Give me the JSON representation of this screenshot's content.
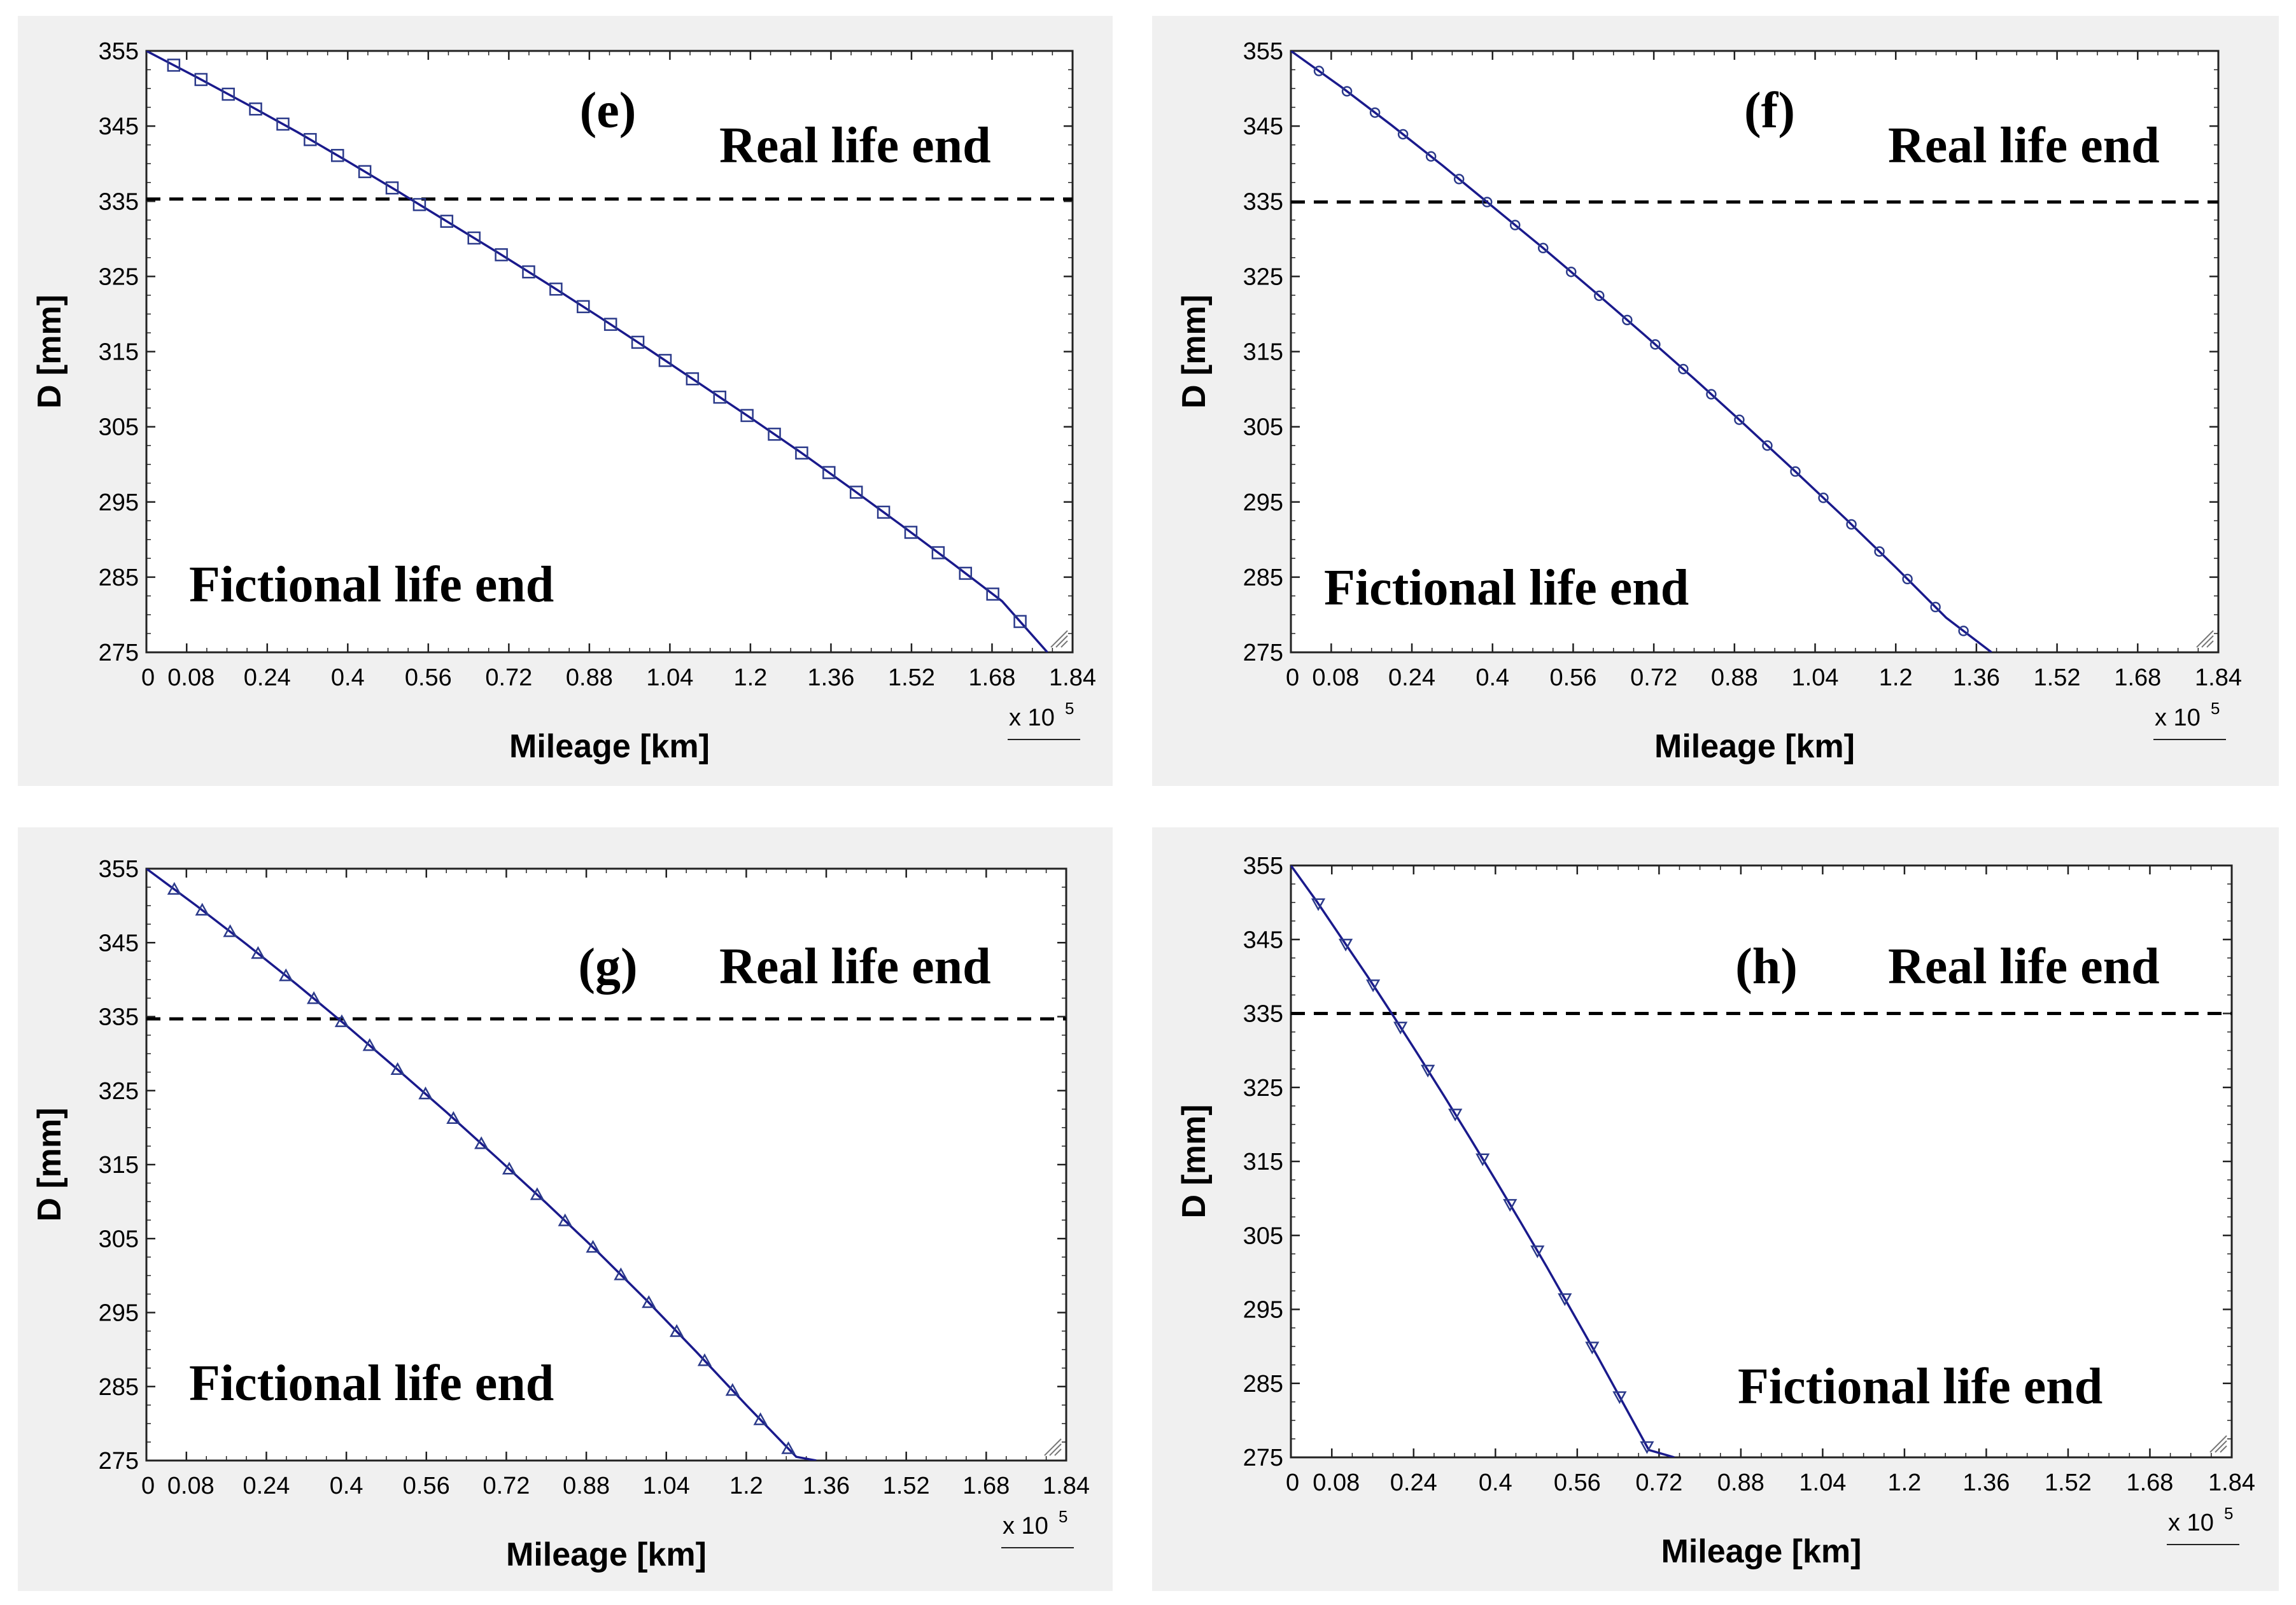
{
  "chart_data": [
    {
      "type": "line",
      "panel_label": "(e)",
      "marker": "square",
      "xlabel": "Mileage [km]",
      "ylabel": "D [mm]",
      "x_multiplier": "x 10",
      "x_multiplier_exp": "5",
      "xlim": [
        0,
        1.84
      ],
      "ylim": [
        275,
        355
      ],
      "x_ticks": [
        "0",
        "0.08",
        "0.24",
        "0.4",
        "0.56",
        "0.72",
        "0.88",
        "1.04",
        "1.2",
        "1.36",
        "1.52",
        "1.68",
        "1.84"
      ],
      "y_ticks": [
        "355",
        "345",
        "335",
        "325",
        "315",
        "305",
        "295",
        "285",
        "275"
      ],
      "threshold": 335.3,
      "threshold_label": "Real life end",
      "fictional_label": "Fictional life end",
      "series": [
        {
          "name": "D",
          "x": [
            0,
            0.1,
            0.2,
            0.3,
            0.4,
            0.5,
            0.6,
            0.7,
            0.8,
            0.9,
            1.0,
            1.1,
            1.2,
            1.3,
            1.4,
            1.5,
            1.6,
            1.7,
            1.79
          ],
          "y": [
            355,
            351.5,
            347.9,
            344.2,
            340.3,
            336.3,
            332.2,
            328.1,
            323.9,
            319.6,
            315.2,
            310.7,
            306.2,
            301.6,
            296.8,
            291.9,
            286.9,
            281.8,
            275
          ]
        }
      ]
    },
    {
      "type": "line",
      "panel_label": "(f)",
      "marker": "circle",
      "xlabel": "Mileage [km]",
      "ylabel": "D [mm]",
      "x_multiplier": "x 10",
      "x_multiplier_exp": "5",
      "xlim": [
        0,
        1.84
      ],
      "ylim": [
        275,
        355
      ],
      "x_ticks": [
        "0",
        "0.08",
        "0.24",
        "0.4",
        "0.56",
        "0.72",
        "0.88",
        "1.04",
        "1.2",
        "1.36",
        "1.52",
        "1.68",
        "1.84"
      ],
      "y_ticks": [
        "355",
        "345",
        "335",
        "325",
        "315",
        "305",
        "295",
        "285",
        "275"
      ],
      "threshold": 334.9,
      "threshold_label": "Real life end",
      "fictional_label": "Fictional life end",
      "series": [
        {
          "name": "D",
          "x": [
            0,
            0.1,
            0.2,
            0.3,
            0.4,
            0.5,
            0.6,
            0.7,
            0.8,
            0.9,
            1.0,
            1.1,
            1.2,
            1.3,
            1.39
          ],
          "y": [
            355,
            350.2,
            345.1,
            339.8,
            334.3,
            328.8,
            323.1,
            317.3,
            311.4,
            305.3,
            299.1,
            292.8,
            286.3,
            279.6,
            275
          ]
        }
      ]
    },
    {
      "type": "line",
      "panel_label": "(g)",
      "marker": "triangle-up",
      "xlabel": "Mileage [km]",
      "ylabel": "D [mm]",
      "x_multiplier": "x 10",
      "x_multiplier_exp": "5",
      "xlim": [
        0,
        1.84
      ],
      "ylim": [
        275,
        355
      ],
      "x_ticks": [
        "0",
        "0.08",
        "0.24",
        "0.4",
        "0.56",
        "0.72",
        "0.88",
        "1.04",
        "1.2",
        "1.36",
        "1.52",
        "1.68",
        "1.84"
      ],
      "y_ticks": [
        "355",
        "345",
        "335",
        "325",
        "315",
        "305",
        "295",
        "285",
        "275"
      ],
      "threshold": 334.7,
      "threshold_label": "Real life end",
      "fictional_label": "Fictional life end",
      "series": [
        {
          "name": "D",
          "x": [
            0,
            0.1,
            0.2,
            0.3,
            0.4,
            0.5,
            0.6,
            0.7,
            0.8,
            0.9,
            1.0,
            1.1,
            1.2,
            1.3,
            1.34
          ],
          "y": [
            355,
            350,
            344.8,
            339.4,
            333.8,
            328,
            322.1,
            316,
            309.8,
            303.4,
            296.7,
            289.7,
            282.5,
            275.5,
            275
          ]
        }
      ]
    },
    {
      "type": "line",
      "panel_label": "(h)",
      "marker": "triangle-down",
      "xlabel": "Mileage [km]",
      "ylabel": "D [mm]",
      "x_multiplier": "x 10",
      "x_multiplier_exp": "5",
      "xlim": [
        0,
        1.84
      ],
      "ylim": [
        275,
        355
      ],
      "x_ticks": [
        "0",
        "0.08",
        "0.24",
        "0.4",
        "0.56",
        "0.72",
        "0.88",
        "1.04",
        "1.2",
        "1.36",
        "1.52",
        "1.68",
        "1.84"
      ],
      "y_ticks": [
        "355",
        "345",
        "335",
        "325",
        "315",
        "305",
        "295",
        "285",
        "275"
      ],
      "threshold": 335,
      "threshold_label": "Real life end",
      "fictional_label": "Fictional life end",
      "series": [
        {
          "name": "D",
          "x": [
            0,
            0.05,
            0.1,
            0.15,
            0.2,
            0.25,
            0.3,
            0.35,
            0.4,
            0.45,
            0.5,
            0.55,
            0.6,
            0.65,
            0.7,
            0.75
          ],
          "y": [
            355,
            350.2,
            345.1,
            340,
            334.7,
            329.3,
            323.8,
            318.2,
            312.5,
            306.7,
            300.8,
            294.7,
            288.6,
            282.3,
            276,
            275
          ]
        }
      ]
    }
  ],
  "colors": {
    "panel_bg": "#f0f0f0",
    "plot_bg": "#ffffff",
    "line": "#1a1a8c",
    "marker": "#2b3a8a",
    "threshold": "#000000"
  }
}
